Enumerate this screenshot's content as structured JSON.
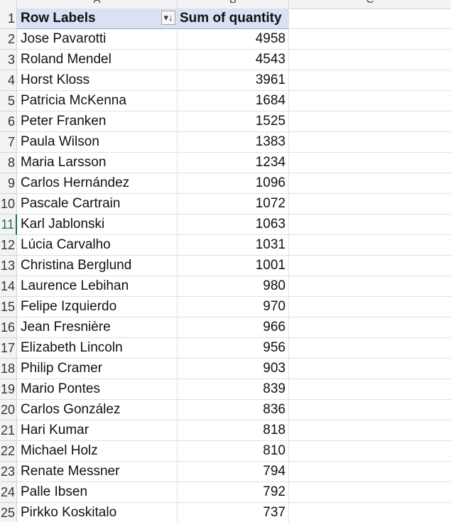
{
  "columns": {
    "a": "A",
    "b": "B",
    "c": "C"
  },
  "pivot": {
    "header_row_num": "1",
    "row_labels_header": "Row Labels",
    "sum_header": "Sum of quantity",
    "filter_sort_icon": "sort-descending-filter-icon",
    "active_row_num": "11",
    "rows": [
      {
        "num": "2",
        "name": "Jose Pavarotti",
        "qty": "4958"
      },
      {
        "num": "3",
        "name": "Roland Mendel",
        "qty": "4543"
      },
      {
        "num": "4",
        "name": "Horst Kloss",
        "qty": "3961"
      },
      {
        "num": "5",
        "name": "Patricia McKenna",
        "qty": "1684"
      },
      {
        "num": "6",
        "name": "Peter Franken",
        "qty": "1525"
      },
      {
        "num": "7",
        "name": "Paula Wilson",
        "qty": "1383"
      },
      {
        "num": "8",
        "name": "Maria Larsson",
        "qty": "1234"
      },
      {
        "num": "9",
        "name": "Carlos Hernández",
        "qty": "1096"
      },
      {
        "num": "10",
        "name": "Pascale Cartrain",
        "qty": "1072"
      },
      {
        "num": "11",
        "name": "Karl Jablonski",
        "qty": "1063"
      },
      {
        "num": "12",
        "name": "Lúcia Carvalho",
        "qty": "1031"
      },
      {
        "num": "13",
        "name": "Christina Berglund",
        "qty": "1001"
      },
      {
        "num": "14",
        "name": "Laurence Lebihan",
        "qty": "980"
      },
      {
        "num": "15",
        "name": "Felipe Izquierdo",
        "qty": "970"
      },
      {
        "num": "16",
        "name": "Jean Fresnière",
        "qty": "966"
      },
      {
        "num": "17",
        "name": "Elizabeth Lincoln",
        "qty": "956"
      },
      {
        "num": "18",
        "name": "Philip Cramer",
        "qty": "903"
      },
      {
        "num": "19",
        "name": "Mario Pontes",
        "qty": "839"
      },
      {
        "num": "20",
        "name": "Carlos González",
        "qty": "836"
      },
      {
        "num": "21",
        "name": "Hari Kumar",
        "qty": "818"
      },
      {
        "num": "22",
        "name": "Michael Holz",
        "qty": "810"
      },
      {
        "num": "23",
        "name": "Renate Messner",
        "qty": "794"
      },
      {
        "num": "24",
        "name": "Palle Ibsen",
        "qty": "792"
      },
      {
        "num": "25",
        "name": "Pirkko Koskitalo",
        "qty": "737"
      }
    ]
  }
}
